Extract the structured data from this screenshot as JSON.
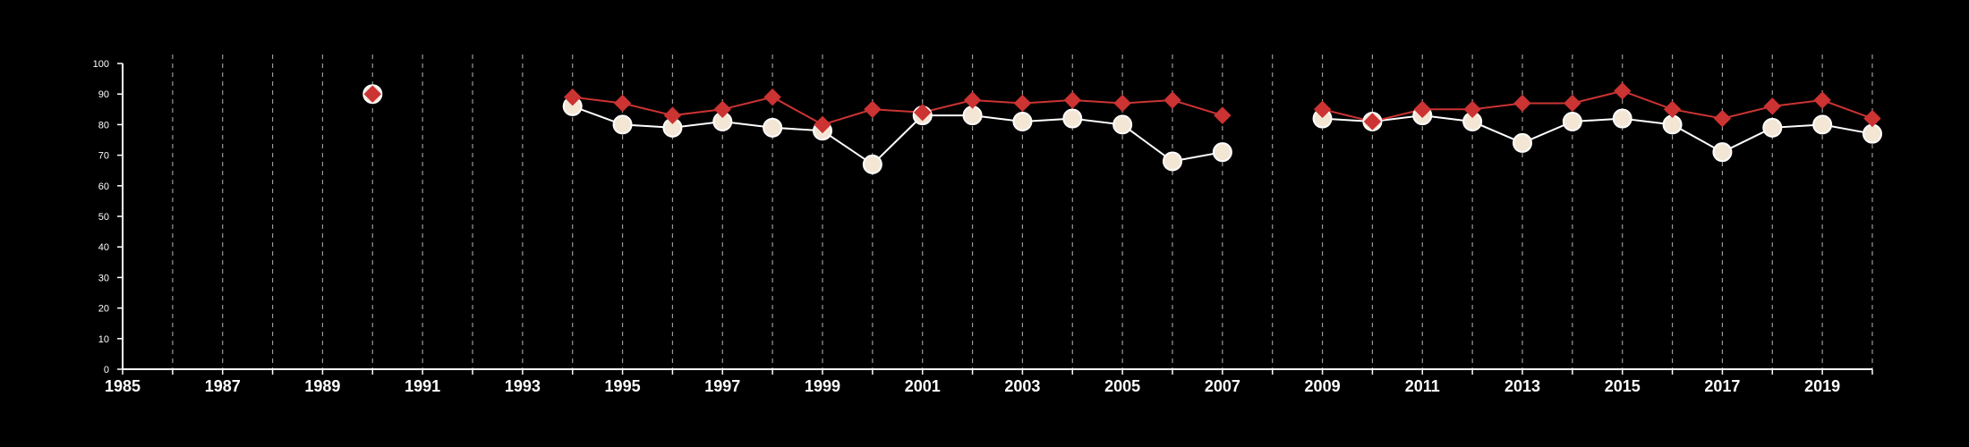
{
  "chart_data": {
    "type": "line",
    "title": "",
    "xlabel": "",
    "ylabel": "",
    "xlim": [
      1985,
      2020
    ],
    "ylim": [
      0,
      100
    ],
    "x_ticks": [
      "1985",
      "1987",
      "1989",
      "1991",
      "1993",
      "1995",
      "1997",
      "1999",
      "2001",
      "2003",
      "2005",
      "2007",
      "2009",
      "2011",
      "2013",
      "2015",
      "2017",
      "2019"
    ],
    "y_ticks": [
      "0",
      "10",
      "20",
      "30",
      "40",
      "50",
      "60",
      "70",
      "80",
      "90",
      "100"
    ],
    "vertical_gridlines": "dashed, one per year",
    "legend": "none",
    "series": [
      {
        "marker": "circle",
        "color": "#ffffff",
        "fill": "#f3e6d4",
        "points": [
          [
            1990,
            90
          ],
          [
            1994,
            86
          ],
          [
            1995,
            80
          ],
          [
            1996,
            79
          ],
          [
            1997,
            81
          ],
          [
            1998,
            79
          ],
          [
            1999,
            78
          ],
          [
            2000,
            67
          ],
          [
            2001,
            83
          ],
          [
            2002,
            83
          ],
          [
            2003,
            81
          ],
          [
            2004,
            82
          ],
          [
            2005,
            80
          ],
          [
            2006,
            68
          ],
          [
            2007,
            71
          ],
          [
            2009,
            82
          ],
          [
            2010,
            81
          ],
          [
            2011,
            83
          ],
          [
            2012,
            81
          ],
          [
            2013,
            74
          ],
          [
            2014,
            81
          ],
          [
            2015,
            82
          ],
          [
            2016,
            80
          ],
          [
            2017,
            71
          ],
          [
            2018,
            79
          ],
          [
            2019,
            80
          ],
          [
            2020,
            77
          ]
        ],
        "segments": [
          [
            1994,
            2007
          ],
          [
            2009,
            2020
          ]
        ]
      },
      {
        "marker": "diamond",
        "color": "#cc3333",
        "points": [
          [
            1990,
            90
          ],
          [
            1994,
            89
          ],
          [
            1995,
            87
          ],
          [
            1996,
            83
          ],
          [
            1997,
            85
          ],
          [
            1998,
            89
          ],
          [
            1999,
            80
          ],
          [
            2000,
            85
          ],
          [
            2001,
            84
          ],
          [
            2002,
            88
          ],
          [
            2003,
            87
          ],
          [
            2004,
            88
          ],
          [
            2005,
            87
          ],
          [
            2006,
            88
          ],
          [
            2007,
            83
          ],
          [
            2009,
            85
          ],
          [
            2010,
            81
          ],
          [
            2011,
            85
          ],
          [
            2012,
            85
          ],
          [
            2013,
            87
          ],
          [
            2014,
            87
          ],
          [
            2015,
            91
          ],
          [
            2016,
            85
          ],
          [
            2017,
            82
          ],
          [
            2018,
            86
          ],
          [
            2019,
            88
          ],
          [
            2020,
            82
          ]
        ],
        "segments": [
          [
            1994,
            2007
          ],
          [
            2009,
            2020
          ]
        ]
      }
    ]
  }
}
